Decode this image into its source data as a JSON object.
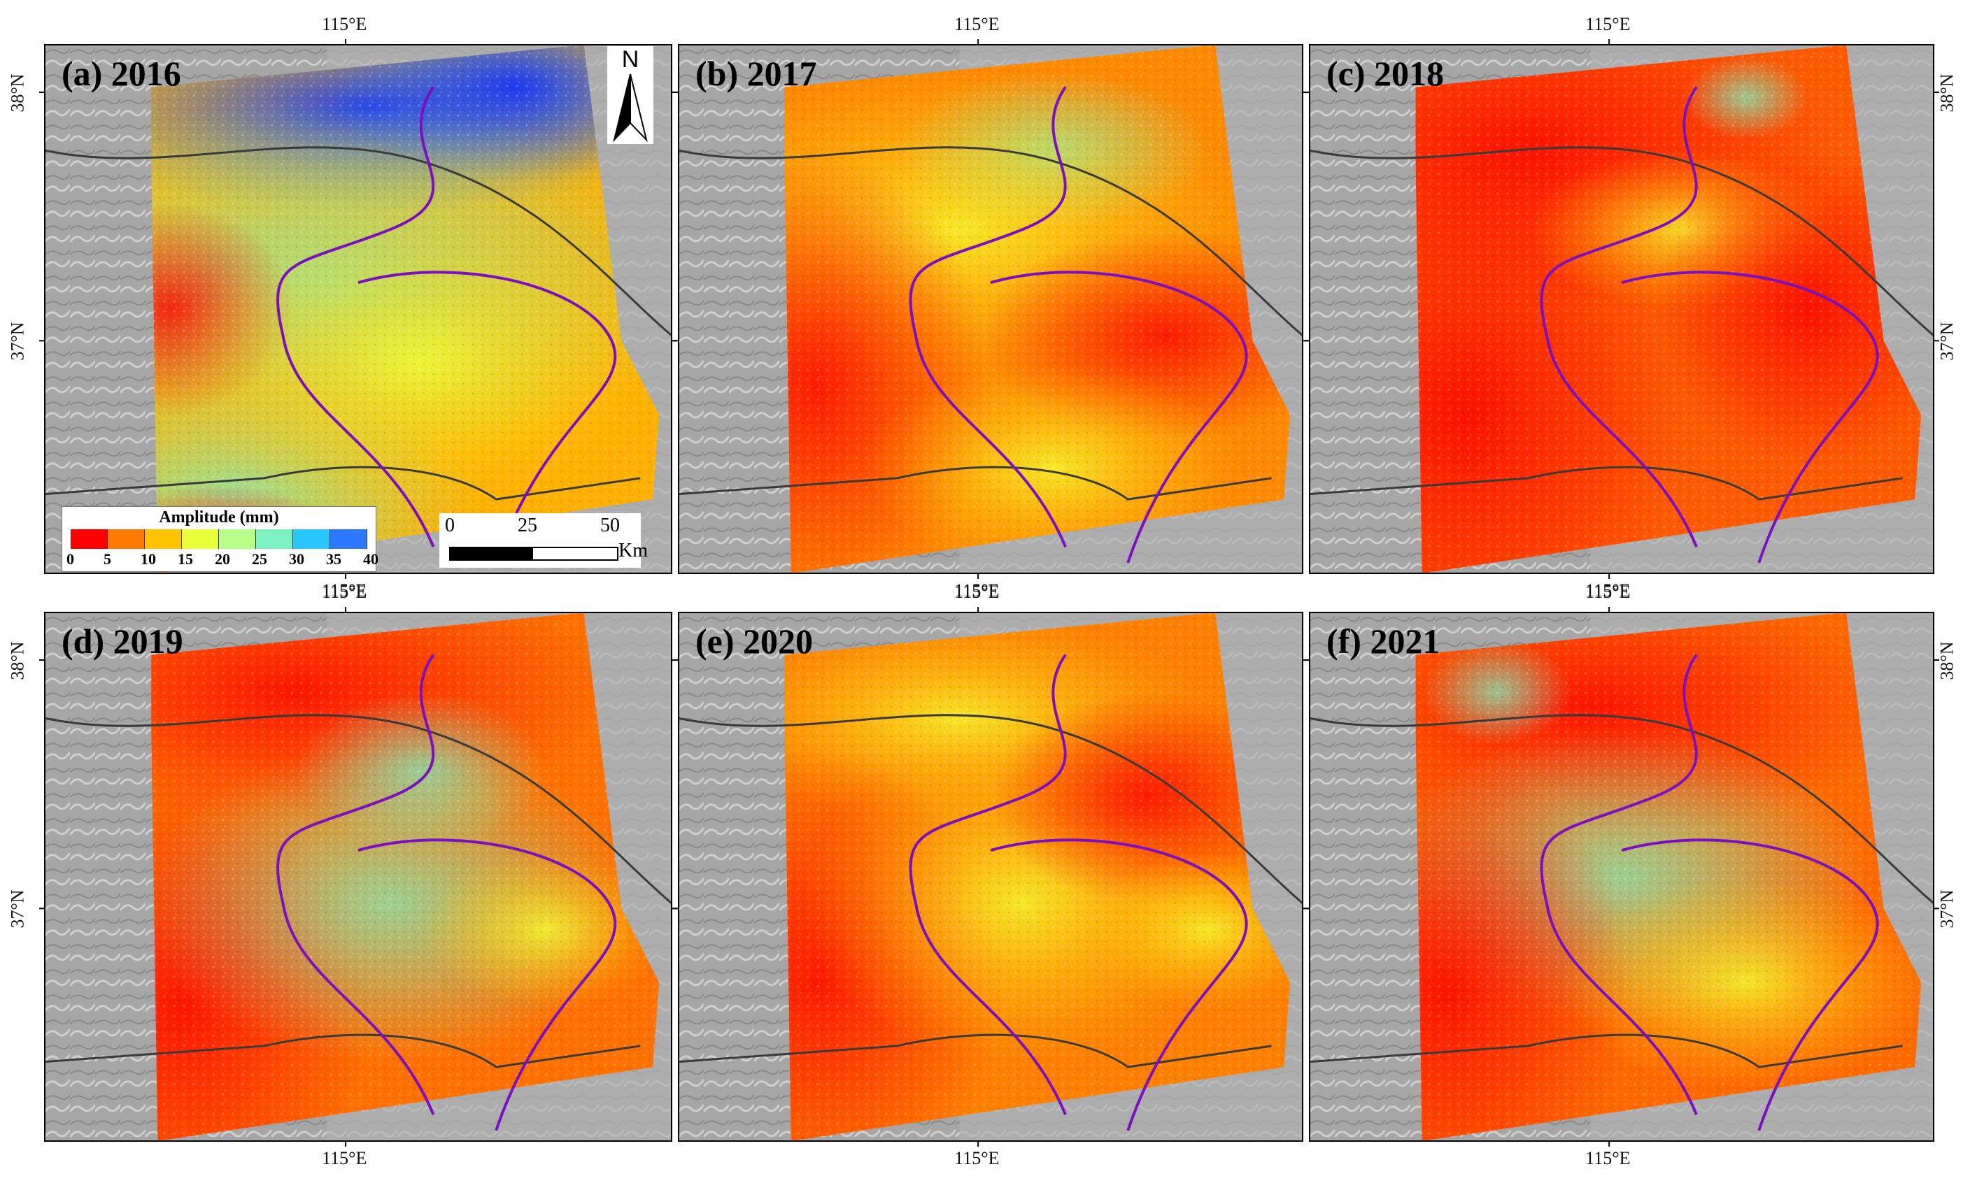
{
  "panels": [
    {
      "label": "(a)  2016",
      "mean_amplitude_mm": 18
    },
    {
      "label": "(b)  2017",
      "mean_amplitude_mm": 9
    },
    {
      "label": "(c)  2018",
      "mean_amplitude_mm": 5
    },
    {
      "label": "(d)  2019",
      "mean_amplitude_mm": 8
    },
    {
      "label": "(e)  2020",
      "mean_amplitude_mm": 9
    },
    {
      "label": "(f)  2021",
      "mean_amplitude_mm": 10
    }
  ],
  "axes": {
    "lon_label": "115°E",
    "lat_top": "38°N",
    "lat_bottom": "37°N"
  },
  "legend": {
    "title": "Amplitude (mm)",
    "ticks": [
      "0",
      "5",
      "10",
      "15",
      "20",
      "25",
      "30",
      "35",
      "40"
    ],
    "colors": [
      "#ff0000",
      "#ff7a00",
      "#ffc400",
      "#e8ff3a",
      "#b8ff8a",
      "#7cf0c0",
      "#28c8ff",
      "#2c78ff",
      "#0000ee"
    ]
  },
  "scale_bar": {
    "ticks": [
      "0",
      "25",
      "50"
    ],
    "unit": "Km"
  },
  "north_arrow": {
    "label": "N"
  },
  "colors": {
    "hillshade": "#a8a8a8",
    "boundary_purple": "#7a10c0",
    "boundary_dark": "#3a3a3a"
  }
}
